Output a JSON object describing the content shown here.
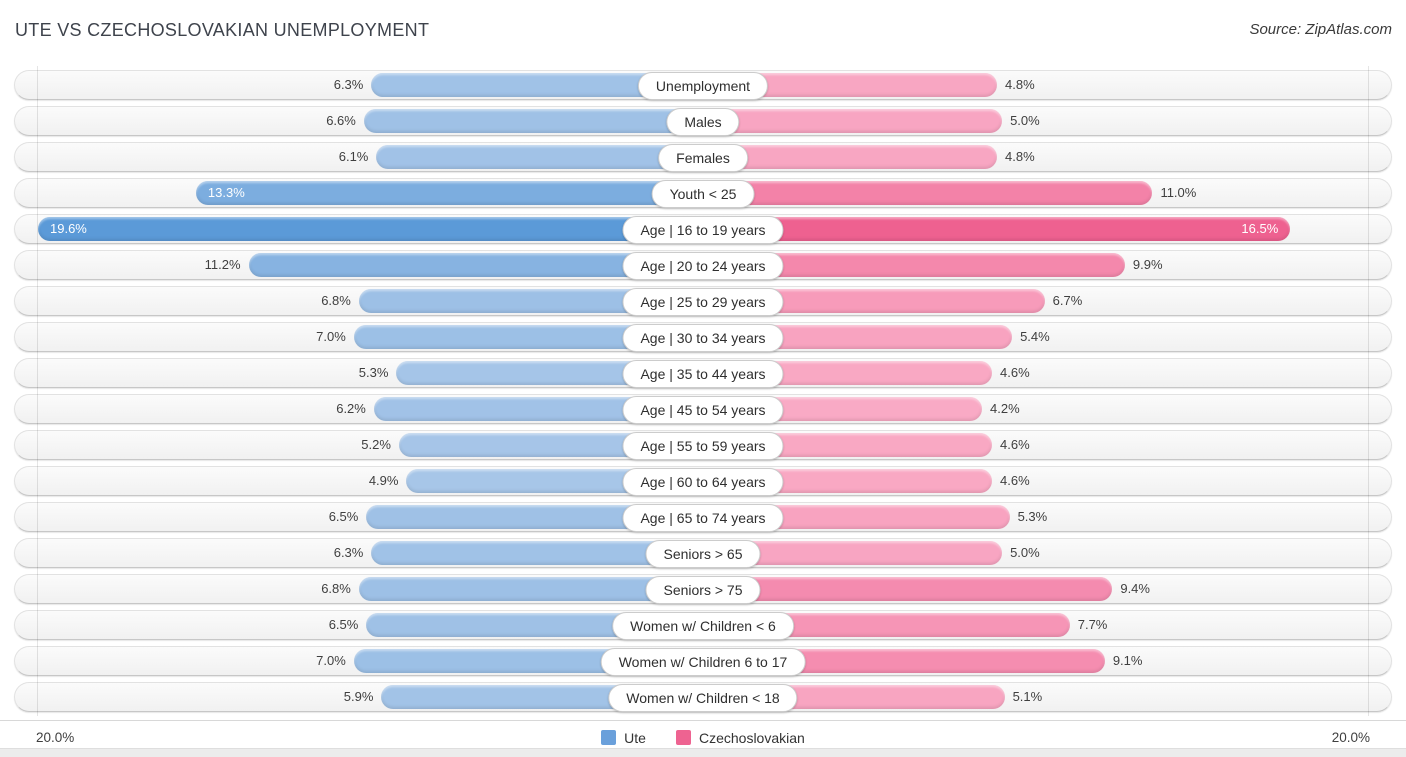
{
  "header": {
    "title": "UTE VS CZECHOSLOVAKIAN UNEMPLOYMENT",
    "source": "Source: ZipAtlas.com"
  },
  "axis": {
    "left_label": "20.0%",
    "right_label": "20.0%",
    "max_percent": 20.0
  },
  "legend": {
    "items": [
      {
        "label": "Ute",
        "color": "#6aa0db"
      },
      {
        "label": "Czechoslovakian",
        "color": "#ee6391"
      }
    ]
  },
  "colors": {
    "blue_light": "#abc8e9",
    "blue_dark": "#5b9ad8",
    "pink_light": "#f9aac5",
    "pink_dark": "#ee6190",
    "track_bg": "#f5f5f5",
    "track_border": "#e2e2e2"
  },
  "chart_data": {
    "type": "bar",
    "subtype": "diverging-horizontal-tornado",
    "title": "UTE VS CZECHOSLOVAKIAN UNEMPLOYMENT",
    "value_suffix": "%",
    "axis_range_each_side": [
      0,
      20.0
    ],
    "grid": "edge-gridlines-only",
    "legend_position": "bottom-center",
    "categories": [
      "Unemployment",
      "Males",
      "Females",
      "Youth < 25",
      "Age | 16 to 19 years",
      "Age | 20 to 24 years",
      "Age | 25 to 29 years",
      "Age | 30 to 34 years",
      "Age | 35 to 44 years",
      "Age | 45 to 54 years",
      "Age | 55 to 59 years",
      "Age | 60 to 64 years",
      "Age | 65 to 74 years",
      "Seniors > 65",
      "Seniors > 75",
      "Women w/ Children < 6",
      "Women w/ Children 6 to 17",
      "Women w/ Children < 18"
    ],
    "series": [
      {
        "name": "Ute",
        "side": "left",
        "values": [
          6.3,
          6.6,
          6.1,
          13.3,
          19.6,
          11.2,
          6.8,
          7.0,
          5.3,
          6.2,
          5.2,
          4.9,
          6.5,
          6.3,
          6.8,
          6.5,
          7.0,
          5.9
        ]
      },
      {
        "name": "Czechoslovakian",
        "side": "right",
        "values": [
          4.8,
          5.0,
          4.8,
          11.0,
          16.5,
          9.9,
          6.7,
          5.4,
          4.6,
          4.2,
          4.6,
          4.6,
          5.3,
          5.0,
          9.4,
          7.7,
          9.1,
          5.1
        ]
      }
    ]
  }
}
